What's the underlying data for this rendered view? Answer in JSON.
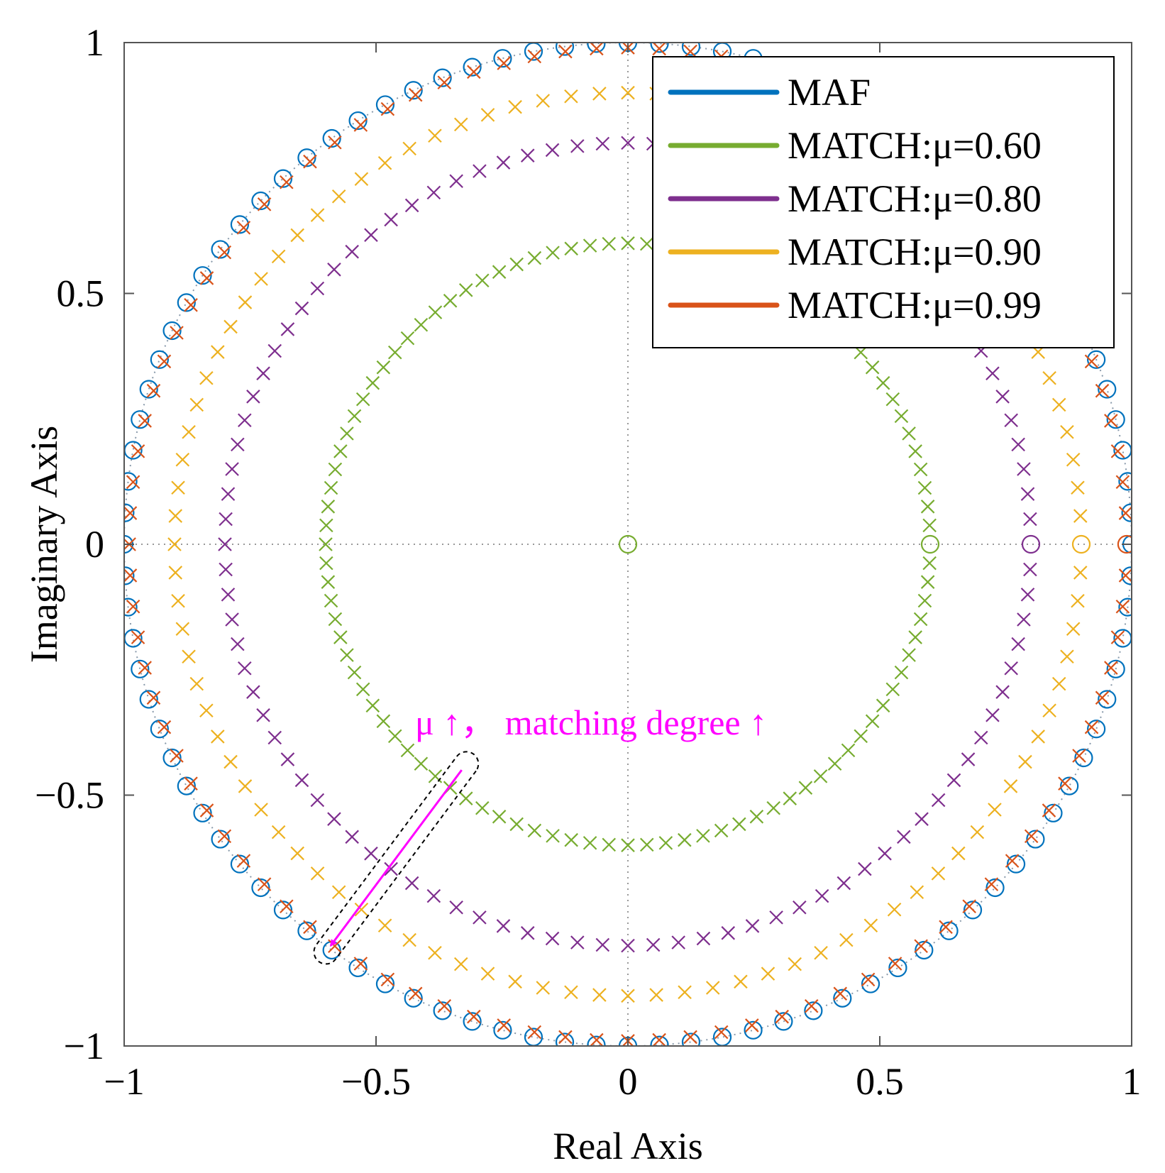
{
  "chart_data": {
    "type": "scatter",
    "subtype": "pole-zero map",
    "title": "",
    "xlabel": "Real Axis",
    "ylabel": "Imaginary Axis",
    "xlim": [
      -1,
      1
    ],
    "ylim": [
      -1,
      1
    ],
    "xticks": [
      -1,
      -0.5,
      0,
      0.5,
      1
    ],
    "yticks": [
      -1,
      -0.5,
      0,
      0.5,
      1
    ],
    "xtick_labels": [
      "−1",
      "−0.5",
      "0",
      "0.5",
      "1"
    ],
    "ytick_labels": [
      "−1",
      "−0.5",
      "0",
      "0.5",
      "1"
    ],
    "grid": "dotted zero lines at Real=0 and Imag=0",
    "unit_circle": true,
    "legend_position": "top-right",
    "legend": [
      {
        "label": "MAF",
        "color": "#0072BD"
      },
      {
        "label": "MATCH:μ=0.60",
        "color": "#77AC30"
      },
      {
        "label": "MATCH:μ=0.80",
        "color": "#7E2F8E"
      },
      {
        "label": "MATCH:μ=0.90",
        "color": "#EDB120"
      },
      {
        "label": "MATCH:μ=0.99",
        "color": "#D95319"
      }
    ],
    "series": [
      {
        "name": "MAF",
        "kind": "zeros",
        "marker": "o",
        "radius": 1.0,
        "count": 100,
        "extra_pole_at_origin": false,
        "color": "#0072BD"
      },
      {
        "name": "MATCH:μ=0.60",
        "kind": "poles-zeros",
        "marker": "x",
        "radius": 0.6,
        "count": 100,
        "zero_at": [
          0,
          0.6
        ],
        "color": "#77AC30"
      },
      {
        "name": "MATCH:μ=0.80",
        "kind": "poles-zeros",
        "marker": "x",
        "radius": 0.8,
        "count": 100,
        "zero_at": [
          0.8
        ],
        "color": "#7E2F8E"
      },
      {
        "name": "MATCH:μ=0.90",
        "kind": "poles-zeros",
        "marker": "x",
        "radius": 0.9,
        "count": 100,
        "zero_at": [
          0.9
        ],
        "color": "#EDB120"
      },
      {
        "name": "MATCH:μ=0.99",
        "kind": "poles-zeros",
        "marker": "x",
        "radius": 0.99,
        "count": 100,
        "zero_at": [
          0.99
        ],
        "color": "#D95319"
      }
    ],
    "annotation": {
      "text": "μ ↑， matching degree ↑",
      "color": "#FF00FF",
      "arrow_from": [
        -0.33,
        -0.45
      ],
      "arrow_to": [
        -0.59,
        -0.8
      ]
    }
  }
}
